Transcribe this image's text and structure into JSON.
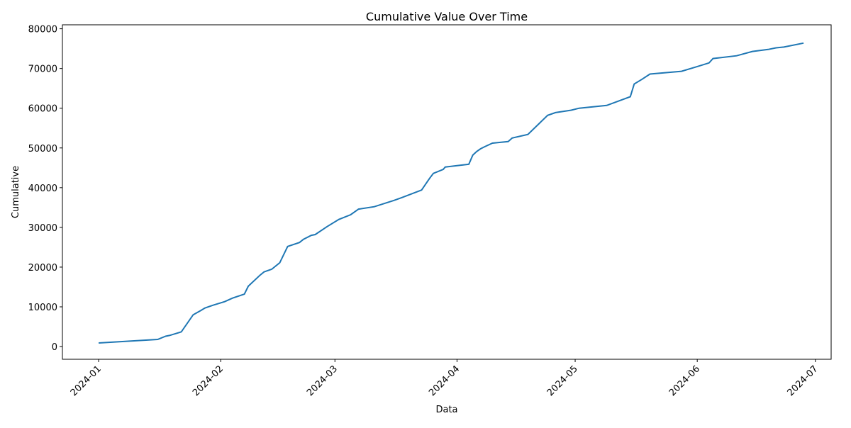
{
  "chart_data": {
    "type": "line",
    "title": "Cumulative Value Over Time",
    "x_label": "Data",
    "y_label": "Cumulative",
    "x": [
      0,
      15,
      17,
      18,
      19.4,
      21,
      24,
      26,
      27,
      29,
      32,
      34,
      37,
      38,
      41,
      42,
      44,
      46,
      48,
      51,
      52,
      54,
      55,
      58,
      61,
      64,
      66,
      70,
      75,
      77,
      82,
      84,
      85,
      87.5,
      88,
      94,
      95,
      96,
      97,
      98,
      100,
      104,
      105,
      109,
      114,
      116,
      120,
      122,
      129,
      135,
      136,
      138,
      140,
      148,
      152,
      155,
      156,
      162,
      166,
      170,
      172,
      174,
      179
    ],
    "series": [
      {
        "color": "#1f77b4",
        "values": [
          900,
          1800,
          2600,
          2800,
          3200,
          3700,
          8000,
          9100,
          9700,
          10400,
          11300,
          12200,
          13200,
          15200,
          18000,
          18800,
          19500,
          21100,
          25200,
          26200,
          27000,
          28000,
          28200,
          30200,
          32000,
          33200,
          34600,
          35200,
          36800,
          37500,
          39400,
          42300,
          43600,
          44600,
          45200,
          45900,
          48200,
          49100,
          49800,
          50300,
          51200,
          51600,
          52500,
          53400,
          58200,
          58900,
          59500,
          60000,
          60700,
          62900,
          66100,
          67300,
          68600,
          69300,
          70500,
          71400,
          72500,
          73200,
          74300,
          74800,
          75200,
          75400,
          76400
        ]
      }
    ],
    "xlim": [
      -9.2,
      186
    ],
    "xticks": [
      {
        "value": 0,
        "label": "2024-01"
      },
      {
        "value": 31,
        "label": "2024-02"
      },
      {
        "value": 60,
        "label": "2024-03"
      },
      {
        "value": 91,
        "label": "2024-04"
      },
      {
        "value": 121,
        "label": "2024-05"
      },
      {
        "value": 152,
        "label": "2024-06"
      },
      {
        "value": 182,
        "label": "2024-07"
      }
    ],
    "ylim": [
      -3200,
      81000
    ],
    "yticks": [
      0,
      10000,
      20000,
      30000,
      40000,
      50000,
      60000,
      70000,
      80000
    ]
  }
}
